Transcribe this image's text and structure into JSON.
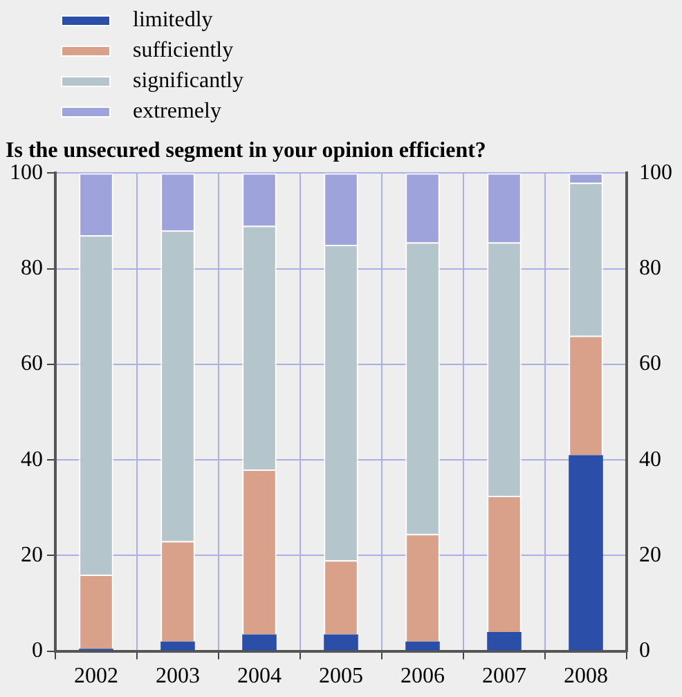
{
  "chart_data": {
    "type": "bar",
    "stacked": true,
    "title": "Is the unsecured segment in your opinion efficient?",
    "categories": [
      "2002",
      "2003",
      "2004",
      "2005",
      "2006",
      "2007",
      "2008"
    ],
    "series": [
      {
        "name": "limitedly",
        "color": "#2b4fa8",
        "values": [
          0.5,
          2,
          3.5,
          3.5,
          2,
          4,
          41
        ]
      },
      {
        "name": "sufficiently",
        "color": "#d9a08a",
        "values": [
          15.5,
          21,
          34.5,
          15.5,
          22.5,
          28.5,
          25
        ]
      },
      {
        "name": "significantly",
        "color": "#b5c5cc",
        "values": [
          71,
          65,
          51,
          66,
          61,
          53,
          32
        ]
      },
      {
        "name": "extremely",
        "color": "#9ea3dc",
        "values": [
          13,
          12,
          11,
          15,
          14.5,
          14.5,
          2
        ]
      }
    ],
    "ylim": [
      0,
      100
    ],
    "yticks": [
      0,
      20,
      40,
      60,
      80,
      100
    ],
    "y2lim": [
      0,
      100
    ],
    "y2ticks": [
      0,
      20,
      40,
      60,
      80,
      100
    ],
    "grid": true,
    "legend": "top left"
  }
}
